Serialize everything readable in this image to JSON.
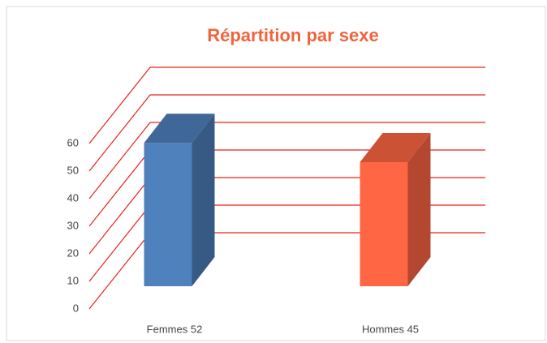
{
  "chart_data": {
    "type": "bar3d",
    "title": "Répartition par sexe",
    "categories": [
      "Femmes 52",
      "Hommes 45"
    ],
    "values": [
      52,
      45
    ],
    "colors": [
      "#4f81bd",
      "#ff6644"
    ],
    "ylim": [
      0,
      60
    ],
    "yticks": [
      0,
      10,
      20,
      30,
      40,
      50,
      60
    ],
    "grid": true,
    "grid_color": "#e8201a"
  }
}
